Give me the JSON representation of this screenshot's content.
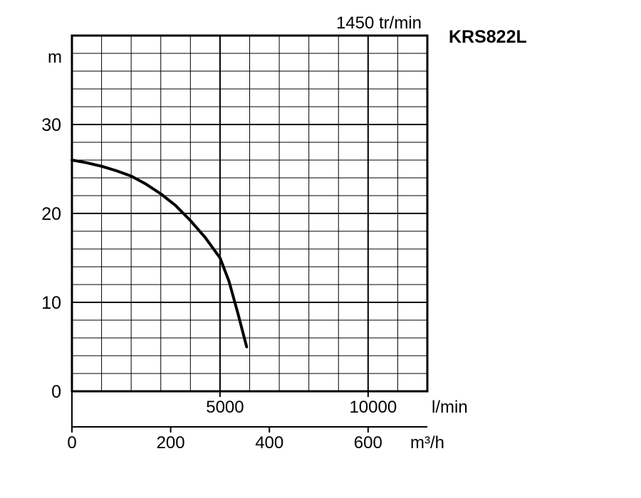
{
  "chart_data": {
    "type": "line",
    "title": "KRS822L",
    "subtitle": "1450 tr/min",
    "ylabel": "m",
    "xlabel": "l/min",
    "x2label": "m³/h",
    "ylim": [
      0,
      40
    ],
    "xlim": [
      0,
      12000
    ],
    "x2lim": [
      0,
      720
    ],
    "yticks": [
      0,
      10,
      20,
      30
    ],
    "yticks_labels": [
      "0",
      "10",
      "20",
      "30"
    ],
    "xticks": [
      5000,
      10000
    ],
    "xticks_labels": [
      "5000",
      "10000"
    ],
    "x2ticks": [
      0,
      200,
      400,
      600
    ],
    "x2ticks_labels": [
      "0",
      "200",
      "400",
      "600"
    ],
    "grid": true,
    "series": [
      {
        "x": [
          0,
          500,
          1000,
          1500,
          2000,
          2500,
          3000,
          3500,
          4000,
          4500,
          5000,
          5300,
          5600,
          5900
        ],
        "y": [
          26.0,
          25.7,
          25.3,
          24.8,
          24.2,
          23.3,
          22.2,
          20.9,
          19.2,
          17.3,
          15.0,
          12.4,
          8.8,
          5.0
        ]
      }
    ]
  },
  "colors": {
    "line": "#000000",
    "grid": "#000000",
    "background": "#ffffff"
  }
}
